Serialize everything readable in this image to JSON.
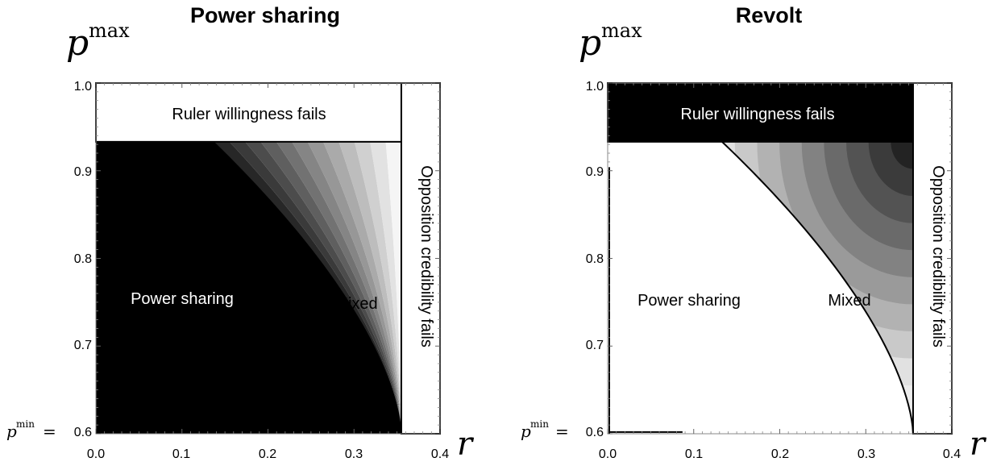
{
  "chart_data": [
    {
      "type": "heatmap",
      "title": "Power sharing",
      "ylabel_symbol": "p",
      "ylabel_superscript": "max",
      "xlabel": "r",
      "xlim": [
        0,
        0.4
      ],
      "ylim": [
        0.6,
        1.0
      ],
      "x_ticks": [
        "0.0",
        "0.1",
        "0.2",
        "0.3",
        "0.4"
      ],
      "y_ticks": [
        "1.0",
        "0.9",
        "0.8",
        "0.7",
        "0.6"
      ],
      "y_min_label_base": "p",
      "y_min_label_sup": "min",
      "y_min_label_eq": "=",
      "thresholds": {
        "ruler_willingness_p": 0.933,
        "opposition_credibility_r": 0.355
      },
      "regions": {
        "ruler": "Ruler willingness fails",
        "power_sharing": "Power sharing",
        "mixed": "Mixed",
        "opposition": "Opposition credibility fails"
      },
      "shading": "mixed region shades fade from black at the power-sharing boundary to white near the opposition threshold"
    },
    {
      "type": "heatmap",
      "title": "Revolt",
      "ylabel_symbol": "p",
      "ylabel_superscript": "max",
      "xlabel": "r",
      "xlim": [
        0,
        0.4
      ],
      "ylim": [
        0.6,
        1.0
      ],
      "x_ticks": [
        "0.0",
        "0.1",
        "0.2",
        "0.3",
        "0.4"
      ],
      "y_ticks": [
        "1.0",
        "0.9",
        "0.8",
        "0.7",
        "0.6"
      ],
      "y_min_label_base": "p",
      "y_min_label_sup": "min",
      "y_min_label_eq": "=",
      "thresholds": {
        "ruler_willingness_p": 0.933,
        "opposition_credibility_r": 0.355
      },
      "regions": {
        "ruler": "Ruler willingness fails",
        "power_sharing": "Power sharing",
        "mixed": "Mixed",
        "opposition": "Opposition credibility fails"
      },
      "shading": "mixed region shades darken from the boundary toward the top-right corner"
    }
  ]
}
